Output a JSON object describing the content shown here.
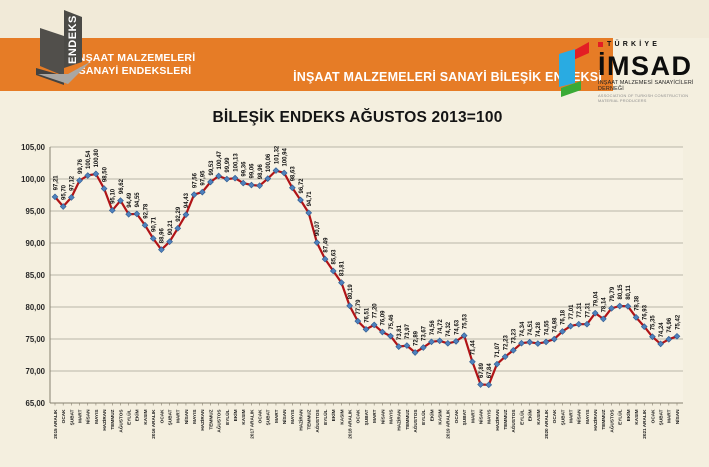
{
  "header": {
    "endeks_logo_label": "ENDEKS",
    "band_left_line1": "İNŞAAT MALZEMELERİ",
    "band_left_line2": "SANAYİ ENDEKSLERİ",
    "band_right_text": "İNŞAAT MALZEMELERİ SANAYİ BİLEŞİK ENDEKSİ",
    "band_color": "#e67c26",
    "imsad_logo": {
      "country": "TÜRKİYE",
      "name": "İMSAD",
      "subtitle_tr": "İNŞAAT MALZEMESİ SANAYİCİLERİ DERNEĞİ",
      "subtitle_en": "ASSOCIATION OF TURKISH CONSTRUCTION MATERIAL PRODUCERS",
      "red": "#e31e24",
      "blue": "#29abe2",
      "green": "#3aaa35"
    }
  },
  "chart_data": {
    "type": "line",
    "title": "BİLEŞİK ENDEKS AĞUSTOS 2013=100",
    "ylim": [
      65,
      105
    ],
    "ytick_step": 5,
    "decimal_separator": ",",
    "grid": true,
    "legend": "none",
    "line_color": "#b01417",
    "marker_color": "#4f81bd",
    "marker_edge": "#2e5a8e",
    "plot_bg": "#f7f2e4",
    "grid_color": "#b9b5a7",
    "axis_color": "#86806f",
    "categories": [
      "2015 ARALIK",
      "OCAK",
      "ŞUBAT",
      "MART",
      "NİSAN",
      "MAYIS",
      "HAZİRAN",
      "TEMMUZ",
      "AĞUSTOS",
      "EYLÜL",
      "EKİM",
      "KASIM",
      "2016 ARALIK",
      "OCAK",
      "ŞUBAT",
      "MART",
      "NİSAN",
      "MAYIS",
      "HAZİRAN",
      "TEMMUZ",
      "AĞUSTOS",
      "EYLÜL",
      "EKİM",
      "KASIM",
      "2017 ARALIK",
      "OCAK",
      "ŞUBAT",
      "MART",
      "NİSAN",
      "MAYIS",
      "HAZİRAN",
      "TEMMUZ",
      "AĞUSTOS",
      "EYLÜL",
      "EKİM",
      "KASIM",
      "2018 ARALIK",
      "OCAK",
      "ŞUBAT",
      "MART",
      "NİSAN",
      "MAYIS",
      "HAZİRAN",
      "TEMMUZ",
      "AĞUSTOS",
      "EYLÜL",
      "EKİM",
      "KASIM",
      "2019 ARALIK",
      "OCAK",
      "ŞUBAT",
      "MART",
      "NİSAN",
      "MAYIS",
      "HAZİRAN",
      "TEMMUZ",
      "AĞUSTOS",
      "EYLÜL",
      "EKİM",
      "KASIM",
      "2020 ARALIK",
      "OCAK",
      "ŞUBAT",
      "MART",
      "NİSAN",
      "MAYIS",
      "HAZİRAN",
      "TEMMUZ",
      "AĞUSTOS",
      "EYLÜL",
      "EKİM",
      "KASIM",
      "2021 ARALIK",
      "OCAK",
      "ŞUBAT",
      "MART",
      "NİSAN"
    ],
    "values": [
      97.21,
      95.7,
      97.12,
      99.76,
      100.54,
      100.8,
      98.5,
      95.1,
      96.62,
      94.49,
      94.55,
      92.78,
      90.71,
      88.96,
      90.21,
      92.29,
      94.43,
      97.56,
      97.95,
      99.53,
      100.47,
      99.99,
      100.13,
      99.36,
      99.06,
      98.96,
      100.06,
      101.32,
      100.94,
      98.63,
      96.72,
      94.71,
      90.07,
      87.49,
      85.63,
      83.81,
      80.19,
      77.79,
      76.51,
      77.2,
      76.09,
      75.46,
      73.81,
      73.97,
      72.89,
      73.67,
      74.56,
      74.72,
      74.32,
      74.63,
      75.53,
      71.44,
      67.89,
      67.84,
      71.07,
      72.23,
      73.23,
      74.34,
      74.51,
      74.28,
      74.55,
      74.98,
      76.18,
      77.01,
      77.31,
      77.31,
      79.04,
      78.14,
      79.79,
      80.15,
      80.11,
      78.38,
      76.93,
      75.35,
      74.24,
      74.96,
      75.42
    ]
  }
}
